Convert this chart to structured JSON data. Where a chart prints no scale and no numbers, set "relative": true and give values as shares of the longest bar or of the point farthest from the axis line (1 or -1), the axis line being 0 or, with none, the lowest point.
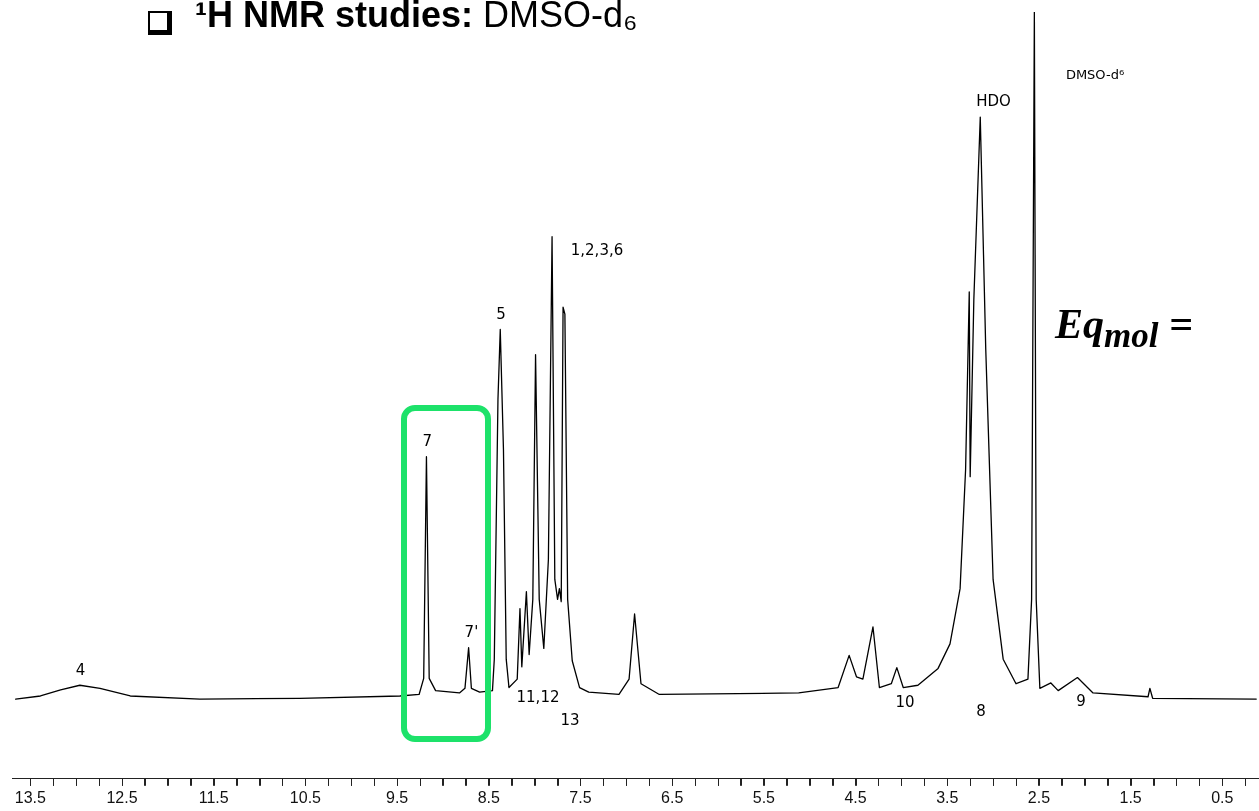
{
  "chart_data": {
    "type": "line",
    "title": "¹H NMR studies:",
    "subtitle": "DMSO-d₆",
    "relative": true,
    "xlim": [
      13.7,
      0.1
    ],
    "xticks": [
      13.5,
      {
        "value": 13.25,
        "label": null
      },
      {
        "value": 13.0,
        "label": null
      },
      {
        "value": 12.75,
        "label": null
      },
      12.5,
      {
        "value": 12.25,
        "label": null
      },
      {
        "value": 12.0,
        "label": null
      },
      {
        "value": 11.75,
        "label": null
      },
      11.5,
      {
        "value": 11.25,
        "label": null
      },
      {
        "value": 11.0,
        "label": null
      },
      {
        "value": 10.75,
        "label": null
      },
      10.5,
      {
        "value": 10.25,
        "label": null
      },
      {
        "value": 10.0,
        "label": null
      },
      {
        "value": 9.75,
        "label": null
      },
      9.5,
      {
        "value": 9.25,
        "label": null
      },
      {
        "value": 9.0,
        "label": null
      },
      {
        "value": 8.75,
        "label": null
      },
      8.5,
      {
        "value": 8.25,
        "label": null
      },
      {
        "value": 8.0,
        "label": null
      },
      {
        "value": 7.75,
        "label": null
      },
      7.5,
      {
        "value": 7.25,
        "label": null
      },
      {
        "value": 7.0,
        "label": null
      },
      {
        "value": 6.75,
        "label": null
      },
      6.5,
      {
        "value": 6.25,
        "label": null
      },
      {
        "value": 6.0,
        "label": null
      },
      {
        "value": 5.75,
        "label": null
      },
      5.5,
      {
        "value": 5.25,
        "label": null
      },
      {
        "value": 5.0,
        "label": null
      },
      {
        "value": 4.75,
        "label": null
      },
      4.5,
      {
        "value": 4.25,
        "label": null
      },
      {
        "value": 4.0,
        "label": null
      },
      {
        "value": 3.75,
        "label": null
      },
      3.5,
      {
        "value": 3.25,
        "label": null
      },
      {
        "value": 3.0,
        "label": null
      },
      {
        "value": 2.75,
        "label": null
      },
      2.5,
      {
        "value": 2.25,
        "label": null
      },
      {
        "value": 2.0,
        "label": null
      },
      {
        "value": 1.75,
        "label": null
      },
      1.5,
      {
        "value": 1.25,
        "label": null
      },
      {
        "value": 1.0,
        "label": null
      },
      {
        "value": 0.75,
        "label": null
      },
      0.5,
      {
        "value": 0.25,
        "label": null
      }
    ],
    "grid": false,
    "legend": false,
    "marker": "none",
    "line_style": "solid",
    "series": [
      {
        "color": "#000000",
        "x": [
          13.66,
          13.39,
          13.17,
          12.96,
          12.74,
          12.41,
          11.65,
          10.56,
          9.47,
          9.26,
          9.21,
          9.18,
          9.15,
          9.08,
          8.82,
          8.76,
          8.72,
          8.69,
          8.6,
          8.46,
          8.44,
          8.4,
          8.375,
          8.34,
          8.31,
          8.28,
          8.19,
          8.16,
          8.14,
          8.09,
          8.06,
          8.02,
          7.99,
          7.95,
          7.9,
          7.85,
          7.81,
          7.78,
          7.75,
          7.73,
          7.71,
          7.69,
          7.67,
          7.64,
          7.59,
          7.51,
          7.41,
          7.08,
          6.97,
          6.91,
          6.84,
          6.64,
          5.12,
          4.69,
          4.57,
          4.49,
          4.42,
          4.31,
          4.24,
          4.11,
          4.05,
          3.98,
          3.82,
          3.6,
          3.47,
          3.36,
          3.3,
          3.26,
          3.25,
          3.21,
          3.14,
          3.08,
          3.0,
          2.89,
          2.75,
          2.62,
          2.58,
          2.55,
          2.53,
          2.49,
          2.37,
          2.29,
          2.08,
          1.91,
          1.31,
          1.29,
          1.26,
          0.13
        ],
        "values": [
          0.104,
          0.108,
          0.116,
          0.122,
          0.118,
          0.108,
          0.104,
          0.105,
          0.108,
          0.11,
          0.131,
          0.42,
          0.131,
          0.115,
          0.112,
          0.118,
          0.171,
          0.118,
          0.113,
          0.115,
          0.156,
          0.495,
          0.586,
          0.429,
          0.156,
          0.119,
          0.13,
          0.222,
          0.146,
          0.244,
          0.162,
          0.234,
          0.553,
          0.234,
          0.17,
          0.286,
          0.707,
          0.26,
          0.234,
          0.248,
          0.231,
          0.615,
          0.606,
          0.234,
          0.154,
          0.119,
          0.113,
          0.11,
          0.13,
          0.215,
          0.124,
          0.11,
          0.112,
          0.119,
          0.161,
          0.133,
          0.13,
          0.198,
          0.119,
          0.124,
          0.145,
          0.119,
          0.122,
          0.144,
          0.176,
          0.248,
          0.403,
          0.635,
          0.394,
          0.625,
          0.863,
          0.56,
          0.26,
          0.156,
          0.124,
          0.13,
          0.234,
          1.0,
          0.234,
          0.118,
          0.125,
          0.115,
          0.132,
          0.112,
          0.107,
          0.118,
          0.105,
          0.104
        ]
      }
    ],
    "annotations": [
      {
        "text": "4",
        "x": 12.96,
        "y": 0.122
      },
      {
        "text": "7",
        "x": 9.18,
        "y": 0.42
      },
      {
        "text": "7'",
        "x": 8.72,
        "y": 0.171
      },
      {
        "text": "5",
        "x": 8.375,
        "y": 0.586
      },
      {
        "text": "HDO",
        "x": 3.14,
        "y": 0.863
      },
      "1,2,3,6",
      "11,12",
      "13",
      "DMSO-d⁶",
      "10",
      "8",
      "9",
      "Eq$_{mol}$ ="
    ]
  }
}
